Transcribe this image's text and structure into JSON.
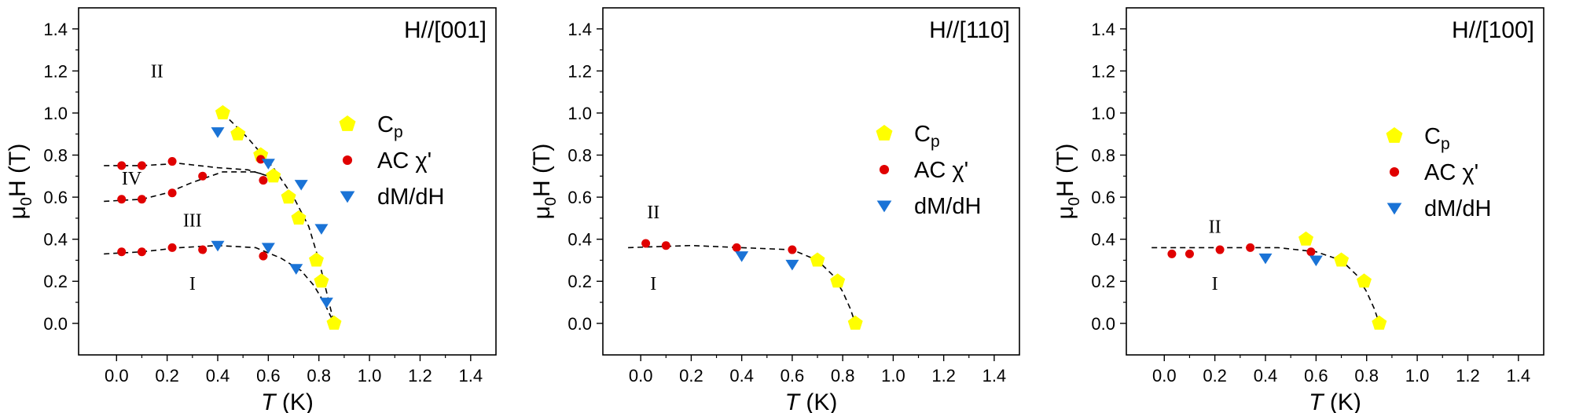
{
  "colors": {
    "cp": "#ffff00",
    "ac": "#e00000",
    "dm": "#1a73d6",
    "fit": "#000000"
  },
  "chart_data": [
    {
      "type": "scatter",
      "title": "H//[001]",
      "xlabel": "T (K)",
      "ylabel": "μ0H (T)",
      "xlim": [
        -0.15,
        1.5
      ],
      "ylim": [
        -0.15,
        1.5
      ],
      "xticks": [
        "0.0",
        "0.2",
        "0.4",
        "0.6",
        "0.8",
        "1.0",
        "1.2",
        "1.4"
      ],
      "yticks": [
        "0.0",
        "0.2",
        "0.4",
        "0.6",
        "0.8",
        "1.0",
        "1.2",
        "1.4"
      ],
      "grid": false,
      "legend_position": "right",
      "series": [
        {
          "name": "Cp",
          "marker": "pentagon",
          "color": "#ffff00",
          "points": [
            [
              0.42,
              1.0
            ],
            [
              0.48,
              0.9
            ],
            [
              0.57,
              0.8
            ],
            [
              0.62,
              0.7
            ],
            [
              0.68,
              0.6
            ],
            [
              0.72,
              0.5
            ],
            [
              0.79,
              0.3
            ],
            [
              0.81,
              0.2
            ],
            [
              0.86,
              0.0
            ]
          ]
        },
        {
          "name": "AC χ'",
          "marker": "circle",
          "color": "#e00000",
          "points": [
            [
              0.02,
              0.75
            ],
            [
              0.1,
              0.75
            ],
            [
              0.22,
              0.77
            ],
            [
              0.57,
              0.78
            ],
            [
              0.02,
              0.59
            ],
            [
              0.1,
              0.59
            ],
            [
              0.22,
              0.62
            ],
            [
              0.34,
              0.7
            ],
            [
              0.58,
              0.68
            ],
            [
              0.02,
              0.34
            ],
            [
              0.1,
              0.34
            ],
            [
              0.22,
              0.36
            ],
            [
              0.34,
              0.35
            ],
            [
              0.58,
              0.32
            ]
          ]
        },
        {
          "name": "dM/dH",
          "marker": "triangle-down",
          "color": "#1a73d6",
          "points": [
            [
              0.4,
              0.91
            ],
            [
              0.6,
              0.76
            ],
            [
              0.73,
              0.66
            ],
            [
              0.81,
              0.45
            ],
            [
              0.83,
              0.1
            ],
            [
              0.4,
              0.37
            ],
            [
              0.6,
              0.36
            ],
            [
              0.71,
              0.26
            ]
          ]
        }
      ],
      "fit_lines": [
        [
          [
            -0.05,
            0.75
          ],
          [
            0.1,
            0.75
          ],
          [
            0.25,
            0.76
          ],
          [
            0.4,
            0.74
          ],
          [
            0.52,
            0.73
          ],
          [
            0.6,
            0.7
          ]
        ],
        [
          [
            -0.05,
            0.58
          ],
          [
            0.1,
            0.59
          ],
          [
            0.2,
            0.62
          ],
          [
            0.3,
            0.67
          ],
          [
            0.42,
            0.72
          ],
          [
            0.55,
            0.72
          ],
          [
            0.62,
            0.69
          ]
        ],
        [
          [
            0.42,
            1.0
          ],
          [
            0.52,
            0.88
          ],
          [
            0.62,
            0.74
          ],
          [
            0.7,
            0.6
          ],
          [
            0.76,
            0.46
          ],
          [
            0.8,
            0.3
          ],
          [
            0.83,
            0.15
          ],
          [
            0.86,
            0.0
          ]
        ],
        [
          [
            -0.05,
            0.33
          ],
          [
            0.1,
            0.34
          ],
          [
            0.25,
            0.36
          ],
          [
            0.4,
            0.37
          ],
          [
            0.55,
            0.36
          ],
          [
            0.65,
            0.31
          ],
          [
            0.73,
            0.25
          ],
          [
            0.78,
            0.18
          ],
          [
            0.82,
            0.1
          ],
          [
            0.86,
            0.0
          ]
        ]
      ],
      "regions": [
        {
          "label": "II",
          "x": 0.16,
          "y": 1.17
        },
        {
          "label": "IV",
          "x": 0.06,
          "y": 0.66
        },
        {
          "label": "III",
          "x": 0.3,
          "y": 0.46
        },
        {
          "label": "I",
          "x": 0.3,
          "y": 0.16
        }
      ]
    },
    {
      "type": "scatter",
      "title": "H//[110]",
      "xlabel": "T (K)",
      "ylabel": "μ0H (T)",
      "xlim": [
        -0.15,
        1.5
      ],
      "ylim": [
        -0.15,
        1.5
      ],
      "xticks": [
        "0.0",
        "0.2",
        "0.4",
        "0.6",
        "0.8",
        "1.0",
        "1.2",
        "1.4"
      ],
      "yticks": [
        "0.0",
        "0.2",
        "0.4",
        "0.6",
        "0.8",
        "1.0",
        "1.2",
        "1.4"
      ],
      "grid": false,
      "legend_position": "right",
      "series": [
        {
          "name": "Cp",
          "marker": "pentagon",
          "color": "#ffff00",
          "points": [
            [
              0.7,
              0.3
            ],
            [
              0.78,
              0.2
            ],
            [
              0.85,
              0.0
            ]
          ]
        },
        {
          "name": "AC χ'",
          "marker": "circle",
          "color": "#e00000",
          "points": [
            [
              0.02,
              0.38
            ],
            [
              0.1,
              0.37
            ],
            [
              0.38,
              0.36
            ],
            [
              0.6,
              0.35
            ]
          ]
        },
        {
          "name": "dM/dH",
          "marker": "triangle-down",
          "color": "#1a73d6",
          "points": [
            [
              0.4,
              0.32
            ],
            [
              0.6,
              0.28
            ]
          ]
        }
      ],
      "fit_lines": [
        [
          [
            -0.05,
            0.36
          ],
          [
            0.2,
            0.37
          ],
          [
            0.4,
            0.36
          ],
          [
            0.6,
            0.35
          ],
          [
            0.7,
            0.3
          ],
          [
            0.76,
            0.23
          ],
          [
            0.8,
            0.15
          ],
          [
            0.83,
            0.07
          ],
          [
            0.85,
            0.0
          ]
        ]
      ],
      "regions": [
        {
          "label": "II",
          "x": 0.05,
          "y": 0.5
        },
        {
          "label": "I",
          "x": 0.05,
          "y": 0.16
        }
      ]
    },
    {
      "type": "scatter",
      "title": "H//[100]",
      "xlabel": "T (K)",
      "ylabel": "μ0H (T)",
      "xlim": [
        -0.15,
        1.5
      ],
      "ylim": [
        -0.15,
        1.5
      ],
      "xticks": [
        "0.0",
        "0.2",
        "0.4",
        "0.6",
        "0.8",
        "1.0",
        "1.2",
        "1.4"
      ],
      "yticks": [
        "0.0",
        "0.2",
        "0.4",
        "0.6",
        "0.8",
        "1.0",
        "1.2",
        "1.4"
      ],
      "grid": false,
      "legend_position": "right",
      "series": [
        {
          "name": "Cp",
          "marker": "pentagon",
          "color": "#ffff00",
          "points": [
            [
              0.56,
              0.4
            ],
            [
              0.7,
              0.3
            ],
            [
              0.79,
              0.2
            ],
            [
              0.85,
              0.0
            ]
          ]
        },
        {
          "name": "AC χ'",
          "marker": "circle",
          "color": "#e00000",
          "points": [
            [
              0.03,
              0.33
            ],
            [
              0.1,
              0.33
            ],
            [
              0.22,
              0.35
            ],
            [
              0.34,
              0.36
            ],
            [
              0.58,
              0.34
            ]
          ]
        },
        {
          "name": "dM/dH",
          "marker": "triangle-down",
          "color": "#1a73d6",
          "points": [
            [
              0.4,
              0.31
            ],
            [
              0.6,
              0.3
            ]
          ]
        }
      ],
      "fit_lines": [
        [
          [
            -0.05,
            0.36
          ],
          [
            0.2,
            0.36
          ],
          [
            0.45,
            0.36
          ],
          [
            0.6,
            0.34
          ],
          [
            0.7,
            0.3
          ],
          [
            0.76,
            0.23
          ],
          [
            0.8,
            0.15
          ],
          [
            0.83,
            0.07
          ],
          [
            0.85,
            0.0
          ]
        ]
      ],
      "regions": [
        {
          "label": "II",
          "x": 0.2,
          "y": 0.43
        },
        {
          "label": "I",
          "x": 0.2,
          "y": 0.16
        }
      ]
    }
  ]
}
